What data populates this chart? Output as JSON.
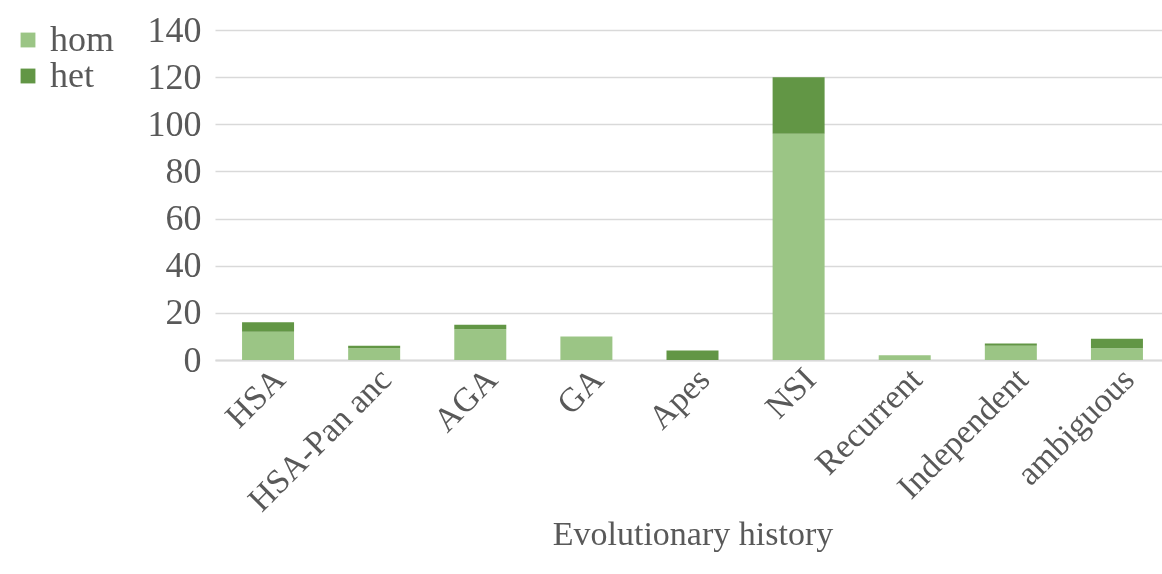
{
  "chart_data": {
    "type": "bar",
    "xlabel": "Evolutionary history",
    "categories": [
      "HSA",
      "HSA-Pan anc",
      "AGA",
      "GA",
      "Apes",
      "NSI",
      "Recurrent",
      "Independent",
      "ambiguous"
    ],
    "series": [
      {
        "name": "hom",
        "color": "#9bc585",
        "values": [
          12,
          5,
          13,
          10,
          0,
          96,
          2,
          6,
          5
        ]
      },
      {
        "name": "het",
        "color": "#629645",
        "values": [
          4,
          1,
          2,
          0,
          4,
          24,
          0,
          1,
          4
        ]
      }
    ],
    "stacked": true,
    "ylim": [
      0,
      140
    ],
    "yticks": [
      0,
      20,
      40,
      60,
      80,
      100,
      120,
      140
    ],
    "grid": "y",
    "legend": "top left"
  }
}
